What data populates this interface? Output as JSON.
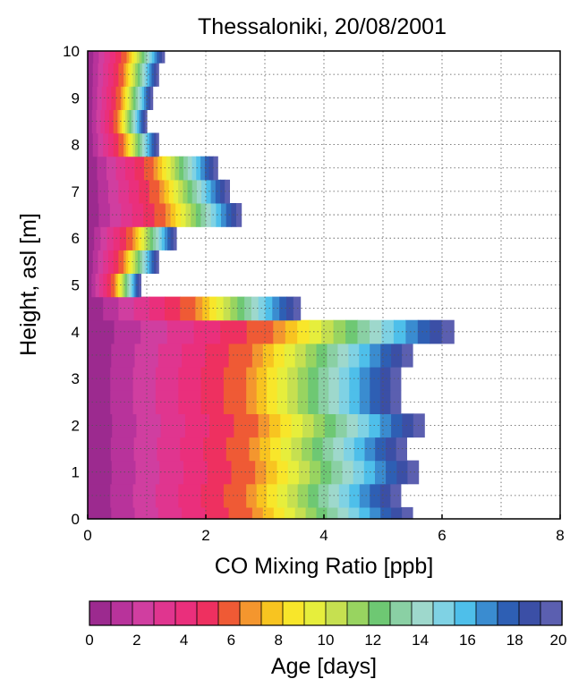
{
  "chart_data": {
    "type": "area",
    "title": "Thessaloniki, 20/08/2001",
    "xlabel": "CO Mixing Ratio [ppb]",
    "ylabel": "Height, asl [m]",
    "xlim": [
      0,
      8
    ],
    "ylim": [
      0,
      10
    ],
    "xticks": [
      "0",
      "2",
      "4",
      "6",
      "8"
    ],
    "yticks": [
      "0",
      "1",
      "2",
      "3",
      "4",
      "5",
      "6",
      "7",
      "8",
      "9",
      "10"
    ],
    "grid": true,
    "profile": [
      {
        "height": 0.0,
        "co": 5.5
      },
      {
        "height": 0.5,
        "co": 5.3
      },
      {
        "height": 1.0,
        "co": 5.6
      },
      {
        "height": 1.5,
        "co": 5.4
      },
      {
        "height": 2.0,
        "co": 5.7
      },
      {
        "height": 2.5,
        "co": 5.3
      },
      {
        "height": 3.0,
        "co": 5.3
      },
      {
        "height": 3.5,
        "co": 5.5
      },
      {
        "height": 4.0,
        "co": 6.2
      },
      {
        "height": 4.5,
        "co": 3.6
      },
      {
        "height": 5.0,
        "co": 0.9
      },
      {
        "height": 5.5,
        "co": 1.2
      },
      {
        "height": 6.0,
        "co": 1.5
      },
      {
        "height": 6.5,
        "co": 2.6
      },
      {
        "height": 7.0,
        "co": 2.4
      },
      {
        "height": 7.5,
        "co": 2.2
      },
      {
        "height": 8.0,
        "co": 1.2
      },
      {
        "height": 8.5,
        "co": 1.0
      },
      {
        "height": 9.0,
        "co": 1.1
      },
      {
        "height": 9.5,
        "co": 1.2
      },
      {
        "height": 10.0,
        "co": 1.3
      }
    ],
    "colorbar": {
      "label": "Age [days]",
      "min": 0,
      "max": 20,
      "ticks": [
        "0",
        "2",
        "4",
        "6",
        "8",
        "10",
        "12",
        "14",
        "16",
        "18",
        "20"
      ],
      "colors": [
        "#9c2a8f",
        "#b8339b",
        "#d03ea0",
        "#e0358f",
        "#ea2f7c",
        "#ee3060",
        "#ef5a35",
        "#f4962e",
        "#f8c420",
        "#f8e62a",
        "#e6ee3c",
        "#c6e050",
        "#98d460",
        "#6ec873",
        "#8ad0a4",
        "#9ed8cc",
        "#7fd2e4",
        "#4ebfea",
        "#3a8cd0",
        "#2e5fb4",
        "#3b4fa6",
        "#5b5fb0"
      ]
    }
  }
}
